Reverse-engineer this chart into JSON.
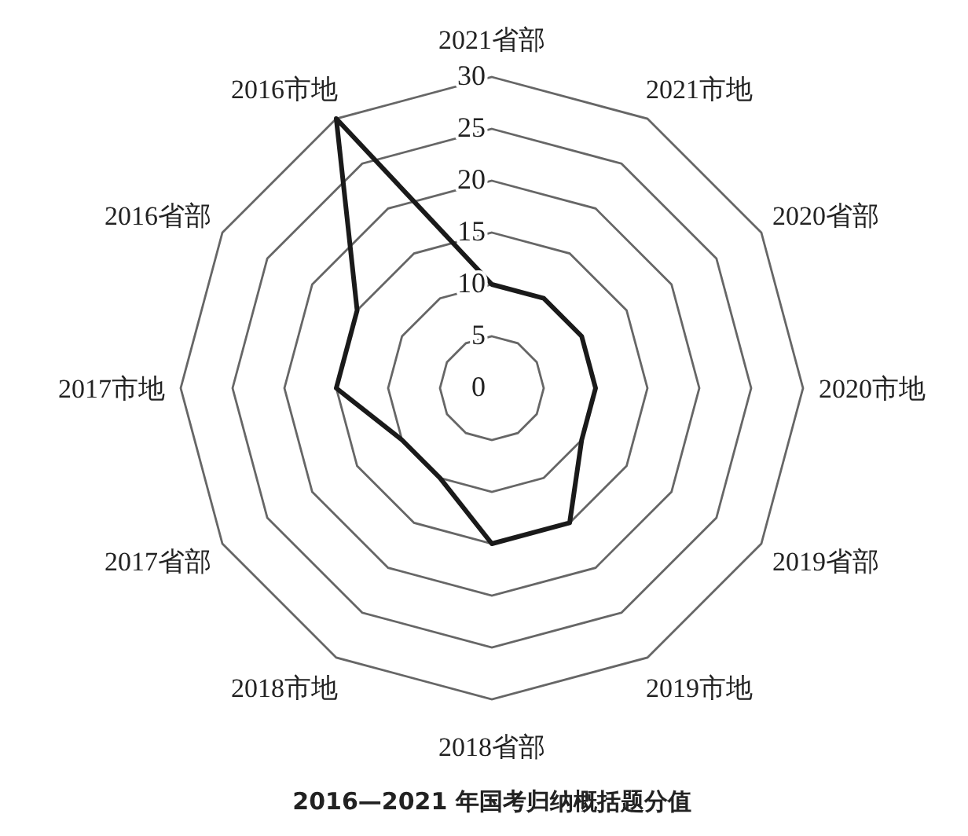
{
  "chart_data": {
    "type": "radar",
    "title": "2016—2021 年国考归纳概括题分值",
    "categories": [
      "2021省部",
      "2021市地",
      "2020省部",
      "2020市地",
      "2019省部",
      "2019市地",
      "2018省部",
      "2018市地",
      "2017省部",
      "2017市地",
      "2016省部",
      "2016市地"
    ],
    "series": [
      {
        "color": "#1a1a1a",
        "values": [
          10,
          10,
          10,
          10,
          10,
          15,
          15,
          10,
          10,
          15,
          15,
          30
        ]
      }
    ],
    "ylim": [
      0,
      30
    ],
    "yticks": [
      0,
      5,
      10,
      15,
      20,
      25,
      30
    ],
    "grid": true,
    "marker": "none",
    "line_style": "solid"
  }
}
